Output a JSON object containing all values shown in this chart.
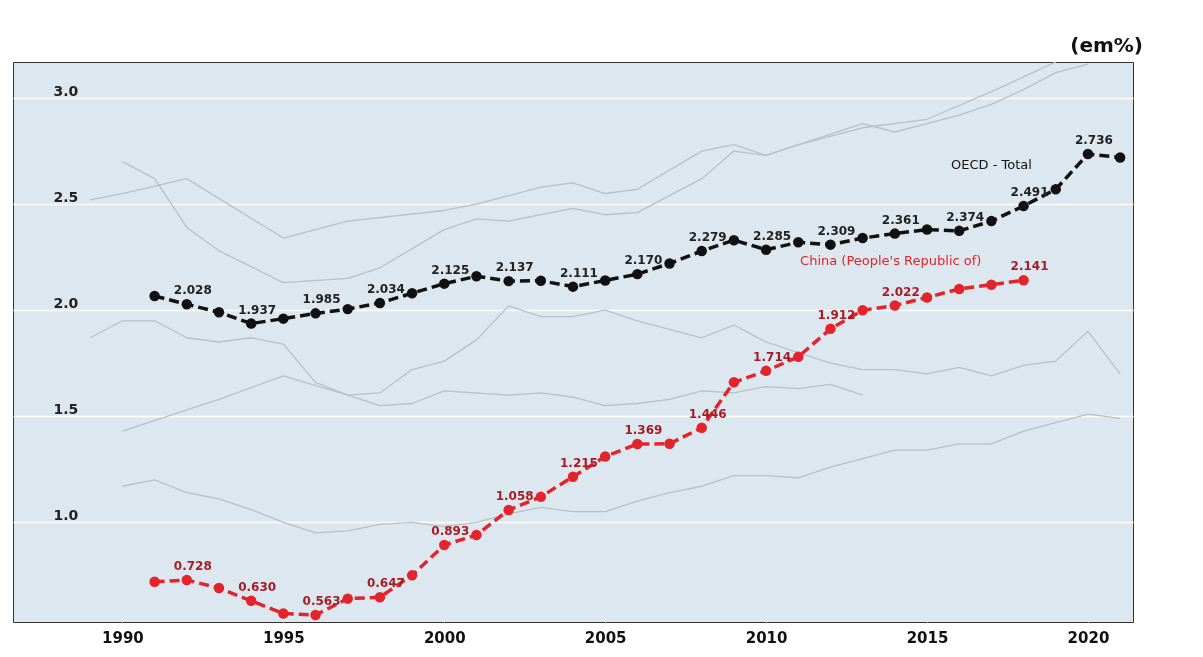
{
  "chart_data": {
    "type": "line",
    "ylabel": "(em%)",
    "xlim": [
      1986.6,
      2021.4
    ],
    "xticks": [
      1990,
      1995,
      2000,
      2005,
      2010,
      2015,
      2020
    ],
    "ylim": [
      0.53,
      3.17
    ],
    "yticks": [
      {
        "value": 1.0,
        "label": "1.0"
      },
      {
        "value": 1.5,
        "label": "1.5"
      },
      {
        "value": 2.0,
        "label": "2.0"
      },
      {
        "value": 2.5,
        "label": "2.5"
      },
      {
        "value": 3.0,
        "label": "3.0"
      }
    ],
    "grid": "y",
    "series": [
      {
        "color": "#b9c0c7",
        "line_style": "solid",
        "marker": "none",
        "x": [
          1989,
          1990,
          1992,
          1995,
          1997,
          2000,
          2001,
          2003,
          2004,
          2005,
          2006,
          2007,
          2008,
          2009,
          2010,
          2013,
          2014,
          2016,
          2017,
          2018,
          2019,
          2020
        ],
        "values": [
          2.52,
          2.55,
          2.62,
          2.34,
          2.42,
          2.47,
          2.5,
          2.58,
          2.6,
          2.55,
          2.57,
          2.66,
          2.75,
          2.78,
          2.73,
          2.88,
          2.84,
          2.92,
          2.97,
          3.04,
          3.12,
          3.16
        ]
      },
      {
        "color": "#b9c0c7",
        "line_style": "solid",
        "marker": "none",
        "x": [
          1990,
          1991,
          1992,
          1993,
          1995,
          1997,
          1998,
          2000,
          2001,
          2002,
          2003,
          2004,
          2005,
          2006,
          2008,
          2009,
          2010,
          2011,
          2013,
          2015,
          2017,
          2018,
          2019
        ],
        "values": [
          2.7,
          2.62,
          2.39,
          2.28,
          2.13,
          2.15,
          2.2,
          2.38,
          2.43,
          2.42,
          2.45,
          2.48,
          2.45,
          2.46,
          2.62,
          2.75,
          2.73,
          2.78,
          2.86,
          2.9,
          3.03,
          3.1,
          3.17
        ]
      },
      {
        "color": "#b9c0c7",
        "line_style": "solid",
        "marker": "none",
        "x": [
          1989,
          1990,
          1991,
          1992,
          1993,
          1994,
          1995,
          1996,
          1997,
          1998,
          1999,
          2000,
          2001,
          2002,
          2003,
          2004,
          2005,
          2006,
          2008,
          2009,
          2010,
          2011,
          2012,
          2013,
          2014,
          2015,
          2016,
          2017,
          2018,
          2019,
          2020,
          2021
        ],
        "values": [
          1.87,
          1.95,
          1.95,
          1.87,
          1.85,
          1.87,
          1.84,
          1.66,
          1.6,
          1.61,
          1.72,
          1.76,
          1.86,
          2.02,
          1.97,
          1.97,
          2.0,
          1.95,
          1.87,
          1.93,
          1.85,
          1.8,
          1.75,
          1.72,
          1.72,
          1.7,
          1.73,
          1.69,
          1.74,
          1.76,
          1.9,
          1.7
        ]
      },
      {
        "color": "#b9c0c7",
        "line_style": "solid",
        "marker": "none",
        "x": [
          1990,
          1992,
          1993,
          1995,
          1997,
          1998,
          1999,
          2000,
          2002,
          2003,
          2004,
          2005,
          2006,
          2007,
          2008,
          2009,
          2010,
          2011,
          2012,
          2013
        ],
        "values": [
          1.43,
          1.53,
          1.58,
          1.69,
          1.6,
          1.55,
          1.56,
          1.62,
          1.6,
          1.61,
          1.59,
          1.55,
          1.56,
          1.58,
          1.62,
          1.61,
          1.64,
          1.63,
          1.65,
          1.6
        ]
      },
      {
        "color": "#b9c0c7",
        "line_style": "solid",
        "marker": "none",
        "x": [
          1990,
          1991,
          1992,
          1993,
          1994,
          1995,
          1996,
          1997,
          1998,
          1999,
          2000,
          2001,
          2002,
          2003,
          2004,
          2005,
          2006,
          2007,
          2008,
          2009,
          2010,
          2011,
          2012,
          2013,
          2014,
          2015,
          2016,
          2017,
          2018,
          2019,
          2020,
          2021
        ],
        "values": [
          1.17,
          1.2,
          1.14,
          1.11,
          1.06,
          1.0,
          0.95,
          0.96,
          0.99,
          1.0,
          0.98,
          1.0,
          1.04,
          1.07,
          1.05,
          1.05,
          1.1,
          1.14,
          1.17,
          1.22,
          1.22,
          1.21,
          1.26,
          1.3,
          1.34,
          1.34,
          1.37,
          1.37,
          1.43,
          1.47,
          1.51,
          1.49
        ]
      },
      {
        "name": "OECD - Total",
        "color": "#111111",
        "line_style": "dashed",
        "marker": "circle",
        "x": [
          1991,
          1992,
          1993,
          1994,
          1995,
          1996,
          1997,
          1998,
          1999,
          2000,
          2001,
          2002,
          2003,
          2004,
          2005,
          2006,
          2007,
          2008,
          2009,
          2010,
          2011,
          2012,
          2013,
          2014,
          2015,
          2016,
          2017,
          2018,
          2019,
          2020,
          2021
        ],
        "values": [
          2.067,
          2.028,
          1.99,
          1.937,
          1.96,
          1.985,
          2.005,
          2.034,
          2.08,
          2.125,
          2.16,
          2.137,
          2.139,
          2.111,
          2.14,
          2.17,
          2.22,
          2.279,
          2.33,
          2.285,
          2.32,
          2.309,
          2.34,
          2.361,
          2.38,
          2.374,
          2.42,
          2.491,
          2.57,
          2.736,
          2.72
        ],
        "value_labels": [
          null,
          "2.028",
          null,
          "1.937",
          null,
          "1.985",
          null,
          "2.034",
          null,
          "2.125",
          null,
          "2.137",
          null,
          "2.111",
          null,
          "2.170",
          null,
          "2.279",
          null,
          "2.285",
          null,
          "2.309",
          null,
          "2.361",
          null,
          "2.374",
          null,
          "2.491",
          null,
          "2.736",
          null
        ]
      },
      {
        "name": "China (People's Republic of)",
        "color": "#e3242b",
        "line_style": "dashed",
        "marker": "circle",
        "x": [
          1991,
          1992,
          1993,
          1994,
          1995,
          1996,
          1997,
          1998,
          1999,
          2000,
          2001,
          2002,
          2003,
          2004,
          2005,
          2006,
          2007,
          2008,
          2009,
          2010,
          2011,
          2012,
          2013,
          2014,
          2015,
          2016,
          2017,
          2018
        ],
        "values": [
          0.72,
          0.728,
          0.69,
          0.63,
          0.57,
          0.563,
          0.64,
          0.647,
          0.75,
          0.893,
          0.94,
          1.058,
          1.12,
          1.215,
          1.31,
          1.369,
          1.37,
          1.446,
          1.66,
          1.714,
          1.78,
          1.912,
          2.0,
          2.022,
          2.06,
          2.1,
          2.12,
          2.141
        ],
        "value_labels": [
          null,
          "0.728",
          null,
          "0.630",
          null,
          "0.563",
          null,
          "0.647",
          null,
          "0.893",
          null,
          "1.058",
          null,
          "1.215",
          null,
          "1.369",
          null,
          "1.446",
          null,
          "1.714",
          null,
          "1.912",
          null,
          "2.022",
          null,
          null,
          null,
          "2.141"
        ]
      }
    ]
  }
}
